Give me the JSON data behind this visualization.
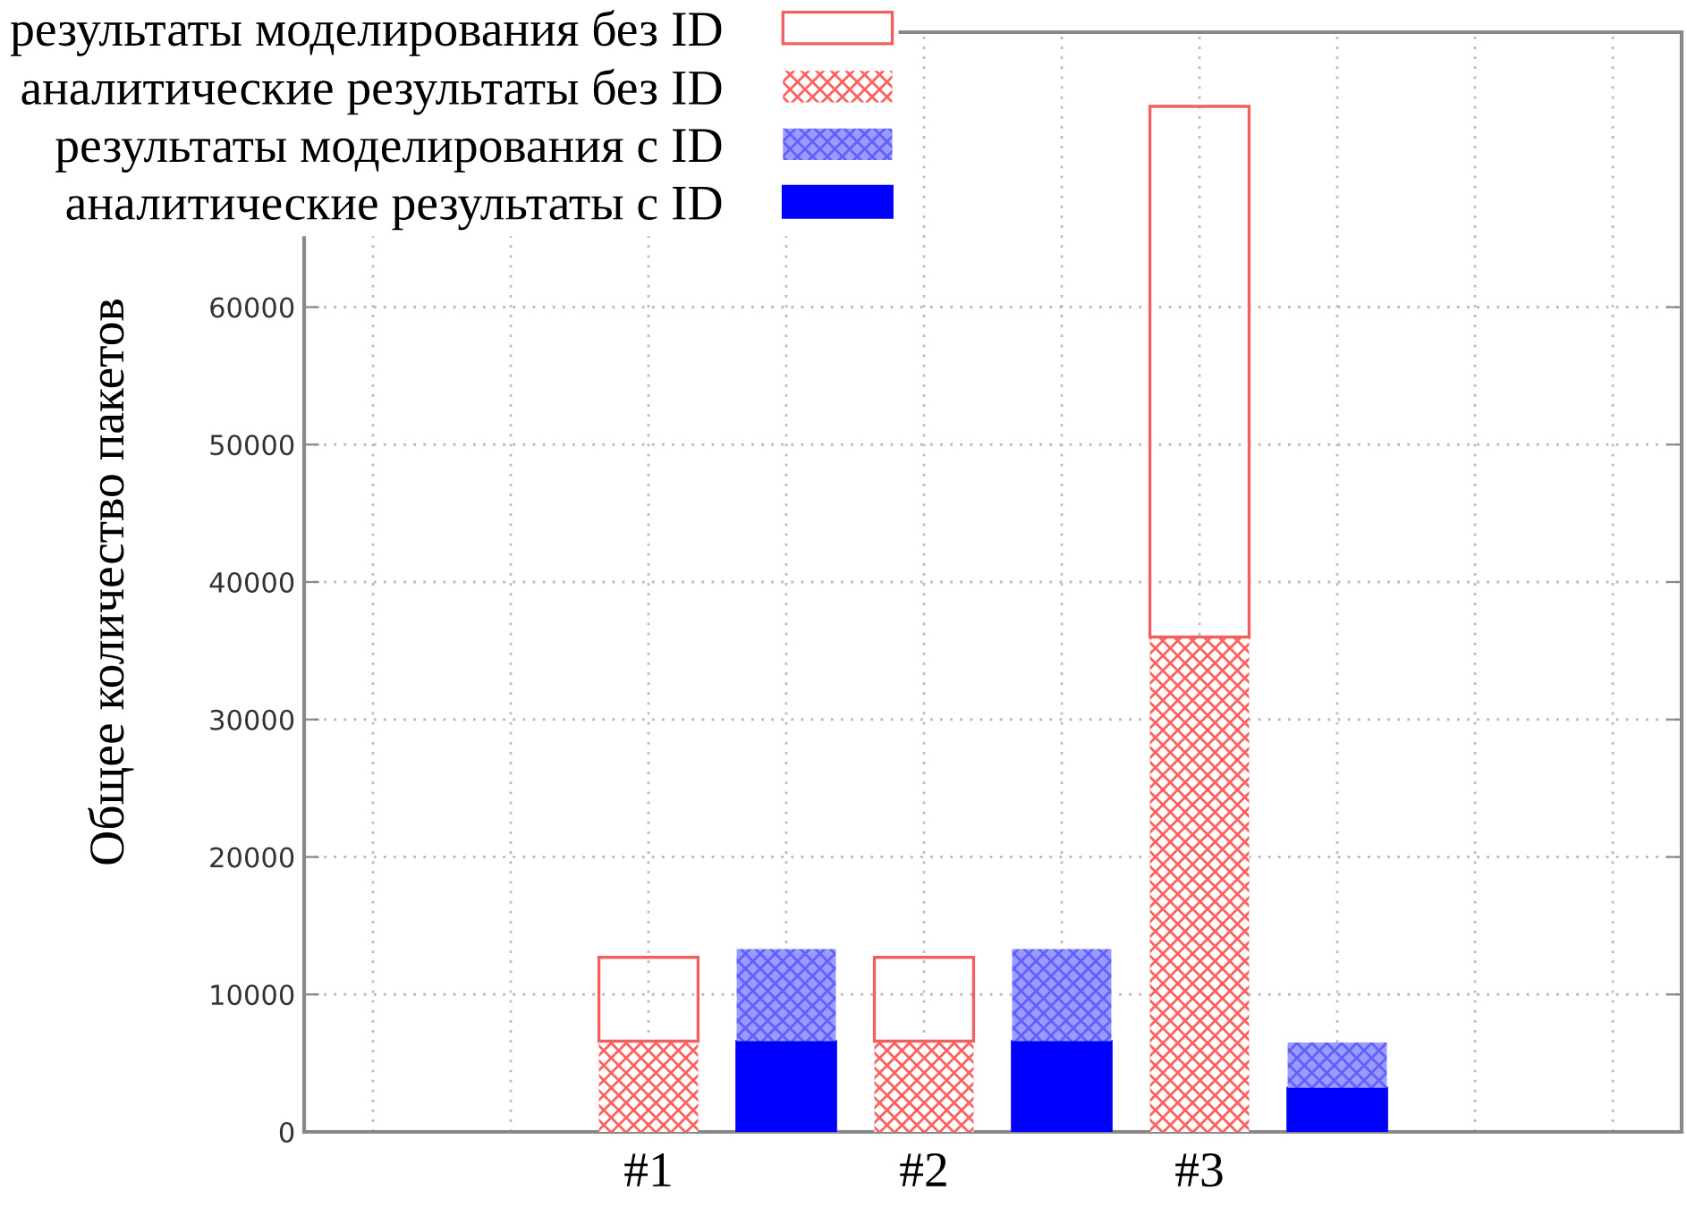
{
  "chart_data": {
    "type": "bar",
    "stacked": true,
    "ylabel": "Общее количество пакетов",
    "categories": [
      null,
      null,
      "#1",
      null,
      "#2",
      null,
      "#3",
      null,
      null,
      null
    ],
    "series": [
      {
        "name": "аналитические результаты без ID",
        "color": "#ff6060",
        "values": [
          null,
          null,
          6600,
          null,
          6600,
          null,
          36000,
          null,
          null,
          null
        ]
      },
      {
        "name": "результаты моделирования без ID",
        "color": "#f06060",
        "values": [
          null,
          null,
          6100,
          null,
          6100,
          null,
          38600,
          null,
          null,
          null
        ]
      },
      {
        "name": "аналитические результаты с ID",
        "color": "#0000ff",
        "values": [
          null,
          null,
          null,
          6600,
          null,
          6600,
          null,
          3200,
          null,
          null
        ]
      },
      {
        "name": "результаты моделирования с ID",
        "color": "#6060ff",
        "values": [
          null,
          null,
          null,
          6700,
          null,
          6700,
          null,
          3300,
          null,
          null
        ]
      }
    ],
    "ylim": [
      0,
      80000
    ],
    "yticks": [
      0,
      10000,
      20000,
      30000,
      40000,
      50000,
      60000
    ],
    "grid": true,
    "legend": "top left"
  }
}
